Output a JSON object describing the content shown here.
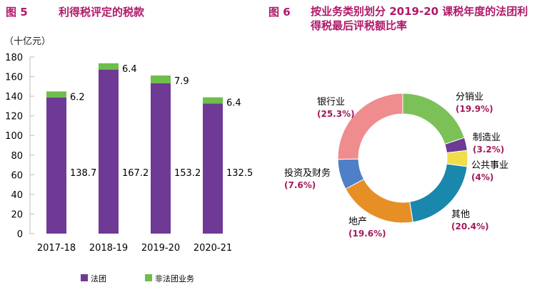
{
  "chart_data": [
    {
      "type": "bar",
      "figure_label": "图 5",
      "title": "利得税评定的税款",
      "ylabel": "（十亿元）",
      "ylim": [
        0,
        180
      ],
      "yticks": [
        0,
        20,
        40,
        60,
        80,
        100,
        120,
        140,
        160,
        180
      ],
      "categories": [
        "2017-18",
        "2018-19",
        "2019-20",
        "2020-21"
      ],
      "stacked": true,
      "series": [
        {
          "name": "法团",
          "color": "#6f3996",
          "values": [
            138.7,
            167.2,
            153.2,
            132.5
          ]
        },
        {
          "name": "非法团业务",
          "color": "#6dbe4b",
          "values": [
            6.2,
            6.4,
            7.9,
            6.4
          ]
        }
      ],
      "legend": "bottom"
    },
    {
      "type": "pie",
      "donut": true,
      "figure_label": "图 6",
      "title": "按业务类别划分 2019-20 课税年度的法团利得税最后评税额比率",
      "slices": [
        {
          "label": "分销业",
          "pct": "(19.9%)",
          "value": 19.9,
          "color": "#7cc158"
        },
        {
          "label": "制造业",
          "pct": "(3.2%)",
          "value": 3.2,
          "color": "#6f3996"
        },
        {
          "label": "公共事业",
          "pct": "(4%)",
          "value": 4,
          "color": "#efdd4a"
        },
        {
          "label": "其他",
          "pct": "(20.4%)",
          "value": 20.4,
          "color": "#1a87ad"
        },
        {
          "label": "地产",
          "pct": "(19.6%)",
          "value": 19.6,
          "color": "#e78f27"
        },
        {
          "label": "投资及财务",
          "pct": "(7.6%)",
          "value": 7.6,
          "color": "#4f7fc7"
        },
        {
          "label": "银行业",
          "pct": "(25.3%)",
          "value": 25.3,
          "color": "#ef8c8e"
        }
      ]
    }
  ]
}
